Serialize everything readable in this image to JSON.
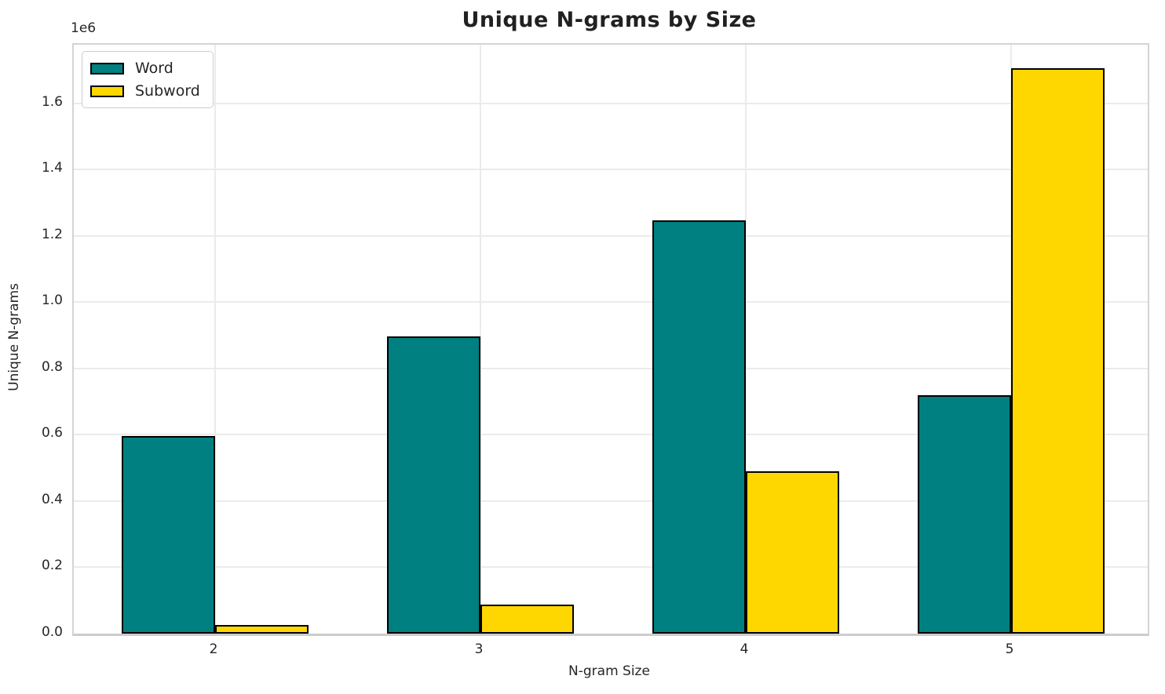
{
  "chart_data": {
    "type": "bar",
    "title": "Unique N-grams by Size",
    "xlabel": "N-gram Size",
    "ylabel": "Unique N-grams",
    "y_offset_label": "1e6",
    "categories": [
      "2",
      "3",
      "4",
      "5"
    ],
    "series": [
      {
        "name": "Word",
        "color": "#008080",
        "values": [
          588000,
          888000,
          1238000,
          711000
        ]
      },
      {
        "name": "Subword",
        "color": "#FFD700",
        "values": [
          16000,
          78000,
          481000,
          1697000
        ]
      }
    ],
    "ylim": [
      0,
      1777000
    ],
    "ytick_values": [
      0,
      200000,
      400000,
      600000,
      800000,
      1000000,
      1200000,
      1400000,
      1600000
    ],
    "ytick_labels": [
      "0.0",
      "0.2",
      "0.4",
      "0.6",
      "0.8",
      "1.0",
      "1.2",
      "1.4",
      "1.6"
    ],
    "grid": true,
    "legend_position": "upper left",
    "bar_edge_color": "#000000",
    "colors": {
      "text": "#262626",
      "grid": "#ebebeb",
      "spine": "#cccccc"
    }
  }
}
